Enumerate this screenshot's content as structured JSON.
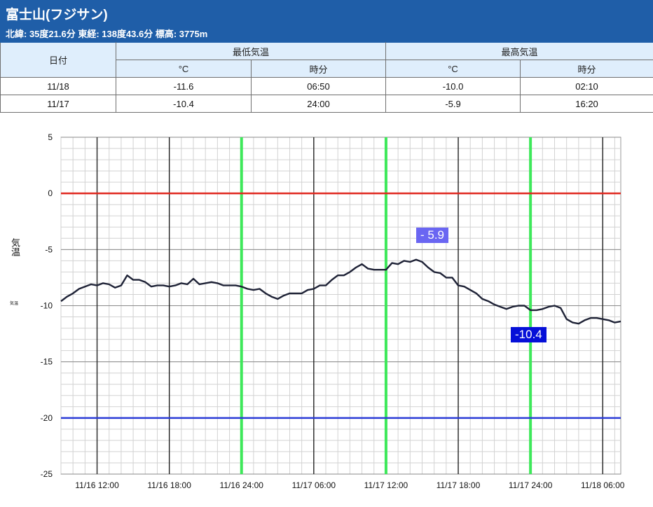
{
  "header": {
    "title": "富士山(フジサン)",
    "subtitle": "北緯: 35度21.6分 東経: 138度43.6分 標高: 3775m"
  },
  "table": {
    "date_header": "日付",
    "min_header": "最低気温",
    "max_header": "最高気温",
    "unit_c": "°C",
    "unit_time": "時分",
    "rows": [
      {
        "date": "11/18",
        "min_c": "-11.6",
        "min_time": "06:50",
        "max_c": "-10.0",
        "max_time": "02:10"
      },
      {
        "date": "11/17",
        "min_c": "-10.4",
        "min_time": "24:00",
        "max_c": "-5.9",
        "max_time": "16:20"
      }
    ]
  },
  "chart_data": {
    "type": "line",
    "ylabel": "気温",
    "ylabel_small": "気温",
    "ylim": [
      -25,
      5
    ],
    "yticks": [
      5,
      0,
      -5,
      -10,
      -15,
      -20,
      -25
    ],
    "xlim_hours": [
      9,
      55.5
    ],
    "x_tick_hours": [
      12,
      18,
      24,
      30,
      36,
      42,
      48,
      54
    ],
    "x_tick_labels": [
      "11/16 12:00",
      "11/16 18:00",
      "11/16 24:00",
      "11/17 06:00",
      "11/17 12:00",
      "11/17 18:00",
      "11/17 24:00",
      "11/18 06:00"
    ],
    "green_line_hours": [
      24,
      36,
      48
    ],
    "reference_lines": [
      {
        "value": 0,
        "color": "#e0261d"
      },
      {
        "value": -20,
        "color": "#2a3ad6"
      }
    ],
    "callouts": {
      "max_label": "- 5.9",
      "min_label": "-10.4"
    },
    "series": [
      {
        "name": "気温",
        "color": "#1e2236",
        "x": [
          9.0,
          9.5,
          10.0,
          10.5,
          11.0,
          11.5,
          12.0,
          12.5,
          13.0,
          13.5,
          14.0,
          14.5,
          15.0,
          15.5,
          16.0,
          16.5,
          17.0,
          17.5,
          18.0,
          18.5,
          19.0,
          19.5,
          20.0,
          20.5,
          21.0,
          21.5,
          22.0,
          22.5,
          23.0,
          23.5,
          24.0,
          24.5,
          25.0,
          25.5,
          26.0,
          26.5,
          27.0,
          27.5,
          28.0,
          28.5,
          29.0,
          29.5,
          30.0,
          30.5,
          31.0,
          31.5,
          32.0,
          32.5,
          33.0,
          33.5,
          34.0,
          34.5,
          35.0,
          35.5,
          36.0,
          36.5,
          37.0,
          37.5,
          38.0,
          38.5,
          39.0,
          39.5,
          40.0,
          40.5,
          41.0,
          41.5,
          42.0,
          42.5,
          43.0,
          43.5,
          44.0,
          44.5,
          45.0,
          45.5,
          46.0,
          46.5,
          47.0,
          47.5,
          48.0,
          48.5,
          49.0,
          49.5,
          50.0,
          50.5,
          51.0,
          51.5,
          52.0,
          52.5,
          53.0,
          53.5,
          54.0,
          54.5,
          55.0,
          55.5
        ],
        "values": [
          -9.6,
          -9.2,
          -8.9,
          -8.5,
          -8.3,
          -8.1,
          -8.2,
          -8.0,
          -8.1,
          -8.4,
          -8.2,
          -7.3,
          -7.7,
          -7.7,
          -7.9,
          -8.3,
          -8.2,
          -8.2,
          -8.3,
          -8.2,
          -8.0,
          -8.1,
          -7.6,
          -8.1,
          -8.0,
          -7.9,
          -8.0,
          -8.2,
          -8.2,
          -8.2,
          -8.3,
          -8.5,
          -8.6,
          -8.5,
          -8.9,
          -9.2,
          -9.4,
          -9.1,
          -8.9,
          -8.9,
          -8.9,
          -8.6,
          -8.5,
          -8.2,
          -8.2,
          -7.7,
          -7.3,
          -7.3,
          -7.0,
          -6.6,
          -6.3,
          -6.7,
          -6.8,
          -6.8,
          -6.8,
          -6.2,
          -6.3,
          -6.0,
          -6.1,
          -5.9,
          -6.1,
          -6.6,
          -7.0,
          -7.1,
          -7.5,
          -7.5,
          -8.2,
          -8.3,
          -8.6,
          -8.9,
          -9.4,
          -9.6,
          -9.9,
          -10.1,
          -10.3,
          -10.1,
          -10.0,
          -10.0,
          -10.4,
          -10.4,
          -10.3,
          -10.1,
          -10.0,
          -10.2,
          -11.2,
          -11.5,
          -11.6,
          -11.3,
          -11.1,
          -11.1,
          -11.2,
          -11.3,
          -11.5,
          -11.4
        ]
      }
    ]
  }
}
